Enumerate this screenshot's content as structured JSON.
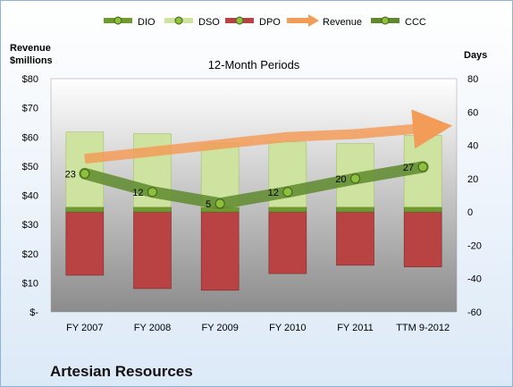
{
  "company": "Artesian Resources",
  "chart_data": {
    "type": "bar",
    "title": "12-Month Periods",
    "left_axis_title": [
      "Revenue",
      "$millions"
    ],
    "right_axis_title": "Days",
    "categories": [
      "FY 2007",
      "FY 2008",
      "FY 2009",
      "FY 2010",
      "FY 2011",
      "TTM 9-2012"
    ],
    "left_ticks": [
      "$80",
      "$70",
      "$60",
      "$50",
      "$40",
      "$30",
      "$20",
      "$10",
      "$-"
    ],
    "right_ticks": [
      "80",
      "60",
      "40",
      "20",
      "0",
      "-20",
      "-40",
      "-60"
    ],
    "ylim_left": [
      0,
      80
    ],
    "ylim_right": [
      -60,
      80
    ],
    "legend": [
      "DIO",
      "DSO",
      "DPO",
      "Revenue",
      "CCC"
    ],
    "legend_position": "top",
    "series": [
      {
        "name": "DIO",
        "chart": "stacked-bar",
        "axis": "right",
        "color": "#6f9a30",
        "values": [
          3,
          3,
          3,
          3,
          3,
          3
        ]
      },
      {
        "name": "DSO",
        "chart": "stacked-bar",
        "axis": "right",
        "color": "#cfe3a0",
        "values": [
          45,
          44,
          38,
          39,
          38,
          43
        ]
      },
      {
        "name": "DPO",
        "chart": "stacked-bar-negative",
        "axis": "right",
        "color": "#b94242",
        "values": [
          -38,
          -46,
          -47,
          -37,
          -32,
          -33
        ]
      },
      {
        "name": "Revenue",
        "chart": "line-arrow",
        "axis": "left",
        "color": "#f39c58",
        "values": [
          52.5,
          55,
          57.5,
          60,
          61,
          63
        ]
      },
      {
        "name": "CCC",
        "chart": "line",
        "axis": "right",
        "color": "#5e8a2d",
        "values": [
          23,
          12,
          5,
          12,
          20,
          27
        ],
        "labels": [
          "23",
          "12",
          "5",
          "12",
          "20",
          "27"
        ]
      }
    ],
    "colors": {
      "plot_top": "#ffffff",
      "plot_bottom": "#8c8c8c",
      "frame_border": "#8fb1d8"
    }
  }
}
